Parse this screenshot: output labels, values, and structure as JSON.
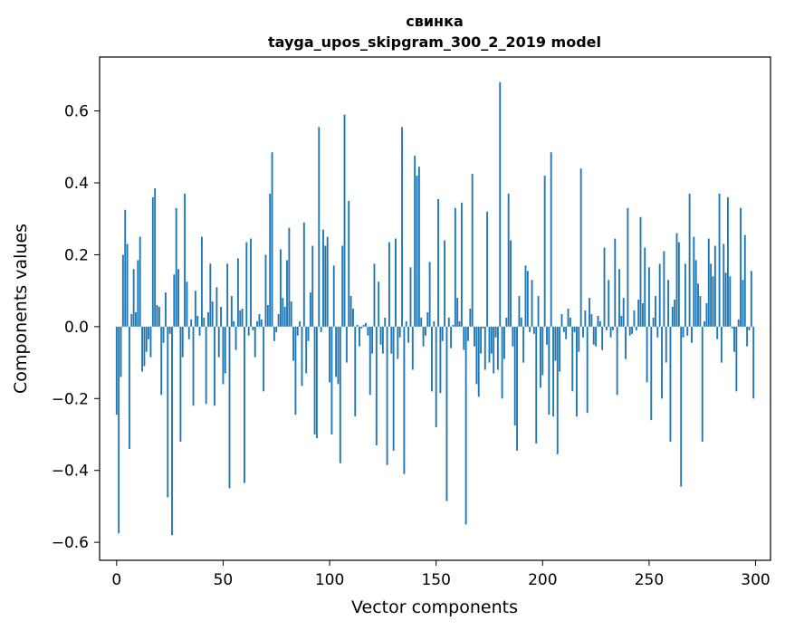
{
  "chart_data": {
    "type": "bar",
    "title": "свинка",
    "subtitle": "tayga_upos_skipgram_300_2_2019 model",
    "xlabel": "Vector components",
    "ylabel": "Components values",
    "xlim": [
      -8,
      307
    ],
    "ylim": [
      -0.65,
      0.75
    ],
    "xticks": [
      0,
      50,
      100,
      150,
      200,
      250,
      300
    ],
    "xtick_labels": [
      "0",
      "50",
      "100",
      "150",
      "200",
      "250",
      "300"
    ],
    "yticks": [
      -0.6,
      -0.4,
      -0.2,
      0.0,
      0.2,
      0.4,
      0.6
    ],
    "ytick_labels": [
      "−0.6",
      "−0.4",
      "−0.2",
      "0.0",
      "0.2",
      "0.4",
      "0.6"
    ],
    "bar_color": "#1f77b4",
    "grid": false,
    "x": "0..299 (component index)",
    "values": [
      -0.245,
      -0.575,
      -0.14,
      0.2,
      0.325,
      0.23,
      -0.34,
      0.035,
      0.16,
      0.04,
      0.185,
      0.25,
      -0.125,
      -0.11,
      -0.07,
      -0.035,
      -0.085,
      0.36,
      0.385,
      0.06,
      0.055,
      -0.19,
      -0.045,
      0.095,
      -0.475,
      -0.02,
      -0.58,
      0.145,
      0.33,
      0.16,
      -0.32,
      -0.085,
      0.37,
      0.125,
      -0.035,
      0.02,
      -0.22,
      0.1,
      0.03,
      -0.025,
      0.25,
      0.025,
      -0.215,
      0.04,
      0.175,
      0.07,
      -0.22,
      0.11,
      -0.085,
      0.055,
      -0.16,
      -0.13,
      0.175,
      -0.45,
      0.085,
      0.015,
      -0.065,
      0.19,
      0.045,
      0.05,
      -0.435,
      0.235,
      -0.025,
      0.245,
      -0.01,
      -0.085,
      0.015,
      0.035,
      0.02,
      -0.18,
      0.2,
      0.06,
      0.37,
      0.485,
      -0.04,
      -0.015,
      0.035,
      0.215,
      0.08,
      0.055,
      0.185,
      0.275,
      0.07,
      -0.095,
      -0.245,
      -0.025,
      0.015,
      -0.165,
      0.29,
      -0.13,
      -0.04,
      0.095,
      0.225,
      -0.3,
      -0.31,
      0.555,
      -0.015,
      0.27,
      0.225,
      0.25,
      -0.155,
      -0.3,
      0.17,
      -0.14,
      -0.16,
      -0.38,
      0.225,
      0.59,
      -0.1,
      0.35,
      0.085,
      0.05,
      -0.25,
      0.005,
      -0.055,
      -0.005,
      0.005,
      0.01,
      -0.025,
      -0.19,
      -0.075,
      0.175,
      -0.33,
      0.125,
      -0.05,
      -0.075,
      0.025,
      -0.385,
      0.235,
      -0.075,
      -0.345,
      0.245,
      -0.09,
      -0.03,
      0.555,
      -0.41,
      0.015,
      -0.045,
      0.165,
      -0.12,
      0.475,
      0.42,
      0.445,
      0.025,
      -0.055,
      -0.025,
      0.04,
      0.18,
      -0.18,
      0.015,
      -0.28,
      0.355,
      -0.185,
      -0.04,
      0.24,
      -0.485,
      0.025,
      -0.06,
      0.005,
      0.33,
      0.08,
      0.015,
      0.345,
      -0.065,
      -0.55,
      -0.04,
      0.05,
      0.425,
      -0.055,
      -0.16,
      -0.195,
      -0.075,
      -0.005,
      -0.12,
      0.32,
      -0.1,
      -0.075,
      -0.13,
      -0.03,
      -0.12,
      0.68,
      -0.2,
      -0.09,
      0.025,
      0.37,
      0.24,
      -0.055,
      -0.275,
      -0.345,
      0.085,
      0.025,
      -0.1,
      0.17,
      0.155,
      -0.015,
      0.13,
      -0.02,
      -0.325,
      0.085,
      -0.17,
      -0.135,
      0.42,
      -0.05,
      -0.245,
      0.485,
      -0.25,
      -0.095,
      -0.355,
      -0.125,
      0.035,
      -0.015,
      -0.035,
      0.05,
      0.025,
      -0.18,
      -0.015,
      -0.25,
      -0.07,
      0.44,
      -0.03,
      0.045,
      -0.24,
      0.08,
      0.035,
      -0.05,
      -0.055,
      0.03,
      0.015,
      -0.065,
      0.22,
      -0.01,
      0.13,
      -0.03,
      -0.01,
      0.245,
      -0.19,
      0.16,
      0.03,
      0.08,
      -0.09,
      0.33,
      -0.025,
      -0.02,
      0.045,
      -0.01,
      0.075,
      0.305,
      0.065,
      0.22,
      -0.155,
      0.165,
      -0.26,
      0.025,
      0.085,
      -0.03,
      0.175,
      -0.2,
      0.21,
      -0.1,
      0.13,
      -0.32,
      0.055,
      0.075,
      0.26,
      0.235,
      -0.445,
      -0.03,
      0.175,
      -0.025,
      0.37,
      -0.045,
      0.25,
      0.185,
      0.12,
      0.085,
      -0.32,
      0.015,
      0.065,
      0.245,
      0.175,
      0.14,
      0.225,
      -0.035,
      0.37,
      -0.1,
      0.23,
      0.15,
      0.36,
      0.14,
      -0.005,
      -0.07,
      -0.18,
      0.02,
      0.33,
      0.13,
      0.255,
      -0.055,
      -0.01,
      0.155,
      -0.2
    ]
  }
}
